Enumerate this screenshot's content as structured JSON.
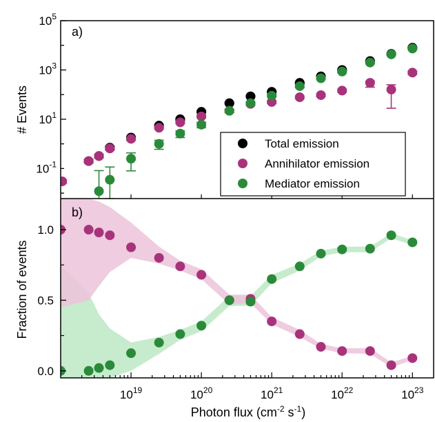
{
  "colors": {
    "total": "#000000",
    "annihilator": "#a8337a",
    "mediator": "#2a8a3a",
    "annihilator_band": "#ecc3da",
    "mediator_band": "#bde8c4"
  },
  "chart_data": [
    {
      "panel_label": "a)",
      "type": "scatter",
      "xscale": "log",
      "yscale": "log",
      "xlim": [
        1e+18,
        2e+23
      ],
      "ylim": [
        0.006,
        100000
      ],
      "ylabel": "# Events",
      "xtick_labels": [
        {
          "base": "10",
          "exp": "19",
          "value": 1e+19
        },
        {
          "base": "10",
          "exp": "20",
          "value": 1e+20
        },
        {
          "base": "10",
          "exp": "21",
          "value": 1e+21
        },
        {
          "base": "10",
          "exp": "22",
          "value": 1e+22
        },
        {
          "base": "10",
          "exp": "23",
          "value": 1e+23
        }
      ],
      "ytick_labels": [
        {
          "base": "10",
          "exp": "-1",
          "value": 0.1
        },
        {
          "base": "10",
          "exp": "1",
          "value": 10
        },
        {
          "base": "10",
          "exp": "3",
          "value": 1000
        },
        {
          "base": "10",
          "exp": "5",
          "value": 100000
        }
      ],
      "legend": {
        "position": "lower-right",
        "entries": [
          "Total emission",
          "Annihilator emission",
          "Mediator emission"
        ]
      },
      "series": [
        {
          "name": "Total emission",
          "x": [
            2.5e+18,
            3.5e+18,
            5e+18,
            1e+19,
            2.5e+19,
            5e+19,
            1e+20,
            2.5e+20,
            5e+20,
            1e+21,
            2.5e+21,
            5e+21,
            1e+22,
            2.5e+22,
            5e+22,
            1e+23
          ],
          "y": [
            0.2,
            0.32,
            0.7,
            1.8,
            5.5,
            10,
            20,
            45,
            85,
            130,
            300,
            550,
            1000,
            2300,
            4500,
            8000
          ],
          "yerr_low": [
            0.03,
            0.05,
            0.1,
            0.2,
            0.6,
            0.8,
            1.5,
            3,
            6,
            8,
            20,
            30,
            50,
            100,
            200,
            300
          ],
          "yerr_high": [
            0.03,
            0.05,
            0.1,
            0.2,
            0.6,
            0.8,
            1.5,
            3,
            6,
            8,
            20,
            30,
            50,
            100,
            200,
            300
          ]
        },
        {
          "name": "Annihilator emission",
          "x": [
            1.05e+18,
            2.5e+18,
            3.5e+18,
            5e+18,
            1e+19,
            2.5e+19,
            5e+19,
            1e+20,
            2.5e+20,
            5e+20,
            1e+21,
            2.5e+21,
            5e+21,
            1e+22,
            2.5e+22,
            5e+22,
            1e+23
          ],
          "y": [
            0.03,
            0.2,
            0.32,
            0.65,
            1.6,
            4.5,
            7.5,
            13,
            22,
            42,
            50,
            78,
            95,
            145,
            300,
            160,
            780
          ],
          "yerr_low": [
            0.005,
            0.03,
            0.05,
            0.1,
            0.2,
            0.5,
            0.8,
            1.5,
            3,
            5,
            6,
            10,
            12,
            20,
            100,
            132,
            120
          ],
          "yerr_high": [
            0.005,
            0.03,
            0.05,
            0.1,
            0.2,
            0.5,
            0.8,
            1.5,
            3,
            5,
            6,
            10,
            12,
            20,
            50,
            90,
            120
          ]
        },
        {
          "name": "Mediator emission",
          "x": [
            3.5e+18,
            5e+18,
            1e+19,
            2.5e+19,
            5e+19,
            1e+20,
            2.5e+20,
            5e+20,
            1e+21,
            2.5e+21,
            5e+21,
            1e+22,
            2.5e+22,
            5e+22,
            1e+23
          ],
          "y": [
            0.012,
            0.035,
            0.25,
            1.0,
            2.6,
            6,
            22,
            45,
            90,
            220,
            460,
            860,
            2000,
            4300,
            7400
          ],
          "yerr_low": [
            0.007,
            0.029,
            0.17,
            0.4,
            0.8,
            1.5,
            3,
            6,
            10,
            30,
            40,
            80,
            200,
            300,
            600
          ],
          "yerr_high": [
            0.07,
            0.08,
            0.18,
            0.4,
            0.8,
            1.5,
            3,
            6,
            10,
            30,
            40,
            80,
            200,
            300,
            600
          ]
        }
      ]
    },
    {
      "panel_label": "b)",
      "type": "scatter",
      "xscale": "log",
      "xlim": [
        1e+18,
        2e+23
      ],
      "ylim": [
        -0.05,
        1.22
      ],
      "xlabel": "Photon flux (cm-2 s-1)",
      "xlabel_parts": [
        "Photon flux (cm",
        "-2",
        " s",
        "-1",
        ")"
      ],
      "ylabel": "Fraction of events",
      "ytick_labels": [
        "0.0",
        "0.5",
        "1.0"
      ],
      "ytick_values": [
        0,
        0.5,
        1.0
      ],
      "xtick_labels": [
        {
          "base": "10",
          "exp": "19",
          "value": 1e+19
        },
        {
          "base": "10",
          "exp": "20",
          "value": 1e+20
        },
        {
          "base": "10",
          "exp": "21",
          "value": 1e+21
        },
        {
          "base": "10",
          "exp": "22",
          "value": 1e+22
        },
        {
          "base": "10",
          "exp": "23",
          "value": 1e+23
        }
      ],
      "series": [
        {
          "name": "Annihilator emission",
          "x": [
            1e+18,
            2.5e+18,
            3.5e+18,
            5e+18,
            1e+19,
            2.5e+19,
            5e+19,
            1e+20,
            2.5e+20,
            5e+20,
            1e+21,
            2.5e+21,
            5e+21,
            1e+22,
            2.5e+22,
            5e+22,
            1e+23
          ],
          "y": [
            1.0,
            1.0,
            0.98,
            0.96,
            0.875,
            0.8,
            0.74,
            0.68,
            0.5,
            0.51,
            0.35,
            0.26,
            0.17,
            0.14,
            0.14,
            0.04,
            0.09
          ],
          "band_low": [
            0.45,
            0.5,
            0.6,
            0.7,
            0.8,
            0.76,
            0.71,
            0.65,
            0.47,
            0.48,
            0.33,
            0.24,
            0.155,
            0.125,
            0.12,
            0.025,
            0.075
          ],
          "band_high": [
            1.22,
            1.22,
            1.2,
            1.16,
            1.05,
            0.88,
            0.78,
            0.72,
            0.54,
            0.54,
            0.38,
            0.29,
            0.19,
            0.16,
            0.16,
            0.06,
            0.105
          ]
        },
        {
          "name": "Mediator emission",
          "x": [
            1e+18,
            2.5e+18,
            3.5e+18,
            5e+18,
            1e+19,
            2.5e+19,
            5e+19,
            1e+20,
            2.5e+20,
            5e+20,
            1e+21,
            2.5e+21,
            5e+21,
            1e+22,
            2.5e+22,
            5e+22,
            1e+23
          ],
          "y": [
            0.0,
            0.0,
            0.02,
            0.04,
            0.125,
            0.2,
            0.26,
            0.32,
            0.5,
            0.49,
            0.65,
            0.74,
            0.83,
            0.86,
            0.865,
            0.96,
            0.91
          ],
          "band_low": [
            -0.05,
            -0.05,
            -0.05,
            -0.05,
            0.0,
            0.12,
            0.22,
            0.28,
            0.46,
            0.46,
            0.62,
            0.71,
            0.81,
            0.84,
            0.84,
            0.94,
            0.89
          ],
          "band_high": [
            0.75,
            0.55,
            0.4,
            0.3,
            0.2,
            0.24,
            0.29,
            0.35,
            0.53,
            0.53,
            0.68,
            0.76,
            0.85,
            0.88,
            0.88,
            0.975,
            0.925
          ]
        }
      ]
    }
  ]
}
